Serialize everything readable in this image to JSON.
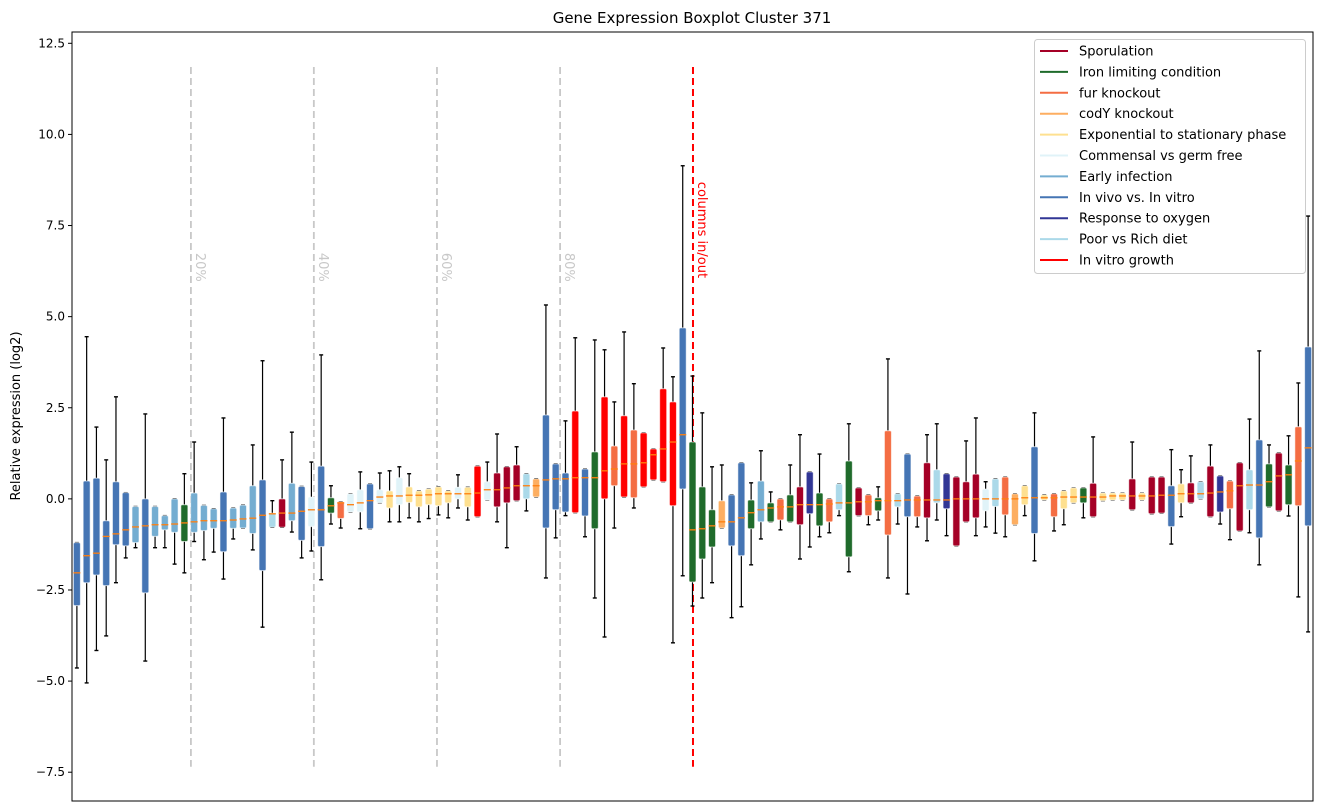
{
  "chart_data": {
    "type": "boxplot",
    "title": "Gene Expression Boxplot Cluster 371",
    "xlabel": "",
    "ylabel": "Relative expression (log2)",
    "ylim": [
      -8.29,
      12.81
    ],
    "xlim": [
      0.5,
      127.5
    ],
    "yticks": [
      -7.5,
      -5.0,
      -2.5,
      0.0,
      2.5,
      5.0,
      7.5,
      10.0,
      12.5
    ],
    "ytick_labels": [
      "−7.5",
      "−5.0",
      "−2.5",
      "0.0",
      "2.5",
      "5.0",
      "7.5",
      "10.0",
      "12.5"
    ],
    "grid": false,
    "legend_position": "top-right",
    "median_color": "#ff7f0e",
    "groups": {
      "S": {
        "name": "Sporulation",
        "color": "#a50026"
      },
      "I": {
        "name": "Iron limiting condition",
        "color": "#1f6b2b"
      },
      "F": {
        "name": "fur knockout",
        "color": "#f46d43"
      },
      "C": {
        "name": "codY knockout",
        "color": "#fdae61"
      },
      "E": {
        "name": "Exponential to stationary phase",
        "color": "#fee090"
      },
      "G": {
        "name": "Commensal vs germ free",
        "color": "#e0f3f8"
      },
      "EI": {
        "name": "Early infection",
        "color": "#74add1"
      },
      "V": {
        "name": "In vivo vs. In vitro",
        "color": "#4575b4"
      },
      "O": {
        "name": "Response to oxygen",
        "color": "#313695"
      },
      "P": {
        "name": "Poor vs Rich diet",
        "color": "#abd9e9"
      },
      "R": {
        "name": "In vitro growth",
        "color": "#ff0000"
      }
    },
    "legend_order": [
      "S",
      "I",
      "F",
      "C",
      "E",
      "G",
      "EI",
      "V",
      "O",
      "P",
      "R"
    ],
    "box_fields": [
      "group",
      "whisker_low",
      "q1",
      "median",
      "q3",
      "whisker_high"
    ],
    "boxes": [
      [
        "V",
        -4.64,
        -2.93,
        -2.03,
        -1.2,
        -1.2
      ],
      [
        "V",
        -5.05,
        -2.3,
        -1.56,
        0.49,
        4.45
      ],
      [
        "V",
        -4.16,
        -2.09,
        -1.49,
        0.57,
        1.97
      ],
      [
        "V",
        -3.76,
        -2.38,
        -1.03,
        -0.6,
        1.07
      ],
      [
        "V",
        -2.3,
        -1.26,
        -0.96,
        0.47,
        2.8
      ],
      [
        "V",
        -1.62,
        -1.29,
        -0.85,
        0.17,
        0.17
      ],
      [
        "EI",
        -1.34,
        -1.2,
        -0.77,
        -0.21,
        -0.21
      ],
      [
        "V",
        -4.45,
        -2.58,
        -0.74,
        0.0,
        2.33
      ],
      [
        "EI",
        -1.34,
        -1.03,
        -0.71,
        -0.21,
        -0.21
      ],
      [
        "EI",
        -1.34,
        -0.85,
        -0.71,
        -0.46,
        -0.46
      ],
      [
        "EI",
        -1.79,
        -0.92,
        -0.69,
        0,
        0
      ],
      [
        "I",
        -2.03,
        -1.17,
        -0.66,
        -0.16,
        0.69
      ],
      [
        "EI",
        -1.17,
        -0.92,
        -0.63,
        0.16,
        1.56
      ],
      [
        "EI",
        -1.67,
        -0.87,
        -0.6,
        -0.18,
        -0.18
      ],
      [
        "EI",
        -1.46,
        -0.81,
        -0.6,
        -0.27,
        -0.27
      ],
      [
        "V",
        -2.2,
        -1.45,
        -0.6,
        0.19,
        2.22
      ],
      [
        "EI",
        -1.1,
        -0.81,
        -0.58,
        -0.25,
        -0.25
      ],
      [
        "EI",
        -0.8,
        -0.8,
        -0.55,
        -0.17,
        -0.17
      ],
      [
        "EI",
        -1.4,
        -0.95,
        -0.53,
        0.36,
        1.48
      ],
      [
        "V",
        -3.52,
        -1.97,
        -0.45,
        0.52,
        3.79
      ],
      [
        "P",
        -0.78,
        -0.78,
        -0.41,
        -0.39,
        -0.05
      ],
      [
        "S",
        -0.78,
        -0.78,
        -0.39,
        0,
        1.07
      ],
      [
        "EI",
        -0.91,
        -0.6,
        -0.39,
        0.43,
        1.83
      ],
      [
        "V",
        -1.62,
        -1.14,
        -0.34,
        0.34,
        0.34
      ],
      [
        "G",
        -1.43,
        -0.76,
        -0.3,
        0.05,
        1.01
      ],
      [
        "V",
        -2.22,
        -1.31,
        -0.3,
        0.9,
        3.95
      ],
      [
        "I",
        -0.69,
        -0.39,
        -0.19,
        0.03,
        0.36
      ],
      [
        "F",
        -0.8,
        -0.54,
        -0.11,
        -0.08,
        -0.08
      ],
      [
        "G",
        -0.36,
        -0.36,
        -0.16,
        0.14,
        0.14
      ],
      [
        "G",
        -0.82,
        -0.36,
        -0.11,
        0.25,
        0.74
      ],
      [
        "V",
        -0.82,
        -0.82,
        -0.05,
        0.41,
        0.41
      ],
      [
        "G",
        -0.11,
        -0.11,
        0.05,
        0.25,
        0.71
      ],
      [
        "E",
        -0.63,
        -0.25,
        0.08,
        0.22,
        0.77
      ],
      [
        "G",
        -0.63,
        -0.16,
        0.08,
        0.58,
        0.88
      ],
      [
        "E",
        -0.52,
        -0.1,
        0.1,
        0.33,
        0.69
      ],
      [
        "E",
        -0.63,
        -0.22,
        0.1,
        0.22,
        0.22
      ],
      [
        "E",
        -0.54,
        -0.16,
        0.11,
        0.27,
        0.27
      ],
      [
        "E",
        -0.44,
        -0.19,
        0.14,
        0.33,
        0.33
      ],
      [
        "E",
        -0.52,
        -0.11,
        0.14,
        0.22,
        0.22
      ],
      [
        "G",
        -0.25,
        0,
        0.14,
        0.32,
        0.66
      ],
      [
        "E",
        -0.58,
        -0.22,
        0.14,
        0.32,
        0.32
      ],
      [
        "R",
        -0.49,
        -0.49,
        0.16,
        0.9,
        0.9
      ],
      [
        "G",
        -0.03,
        -0.03,
        0.25,
        0.47,
        1.01
      ],
      [
        "S",
        -0.63,
        -0.22,
        0.25,
        0.71,
        1.78
      ],
      [
        "S",
        -1.34,
        -0.11,
        0.3,
        0.88,
        0.88
      ],
      [
        "S",
        -0.05,
        -0.05,
        0.36,
        0.93,
        1.43
      ],
      [
        "P",
        -0.33,
        0,
        0.36,
        0.69,
        0.69
      ],
      [
        "C",
        0.05,
        0.05,
        0.36,
        0.55,
        0.55
      ],
      [
        "V",
        -2.17,
        -0.8,
        0.52,
        2.3,
        5.32
      ],
      [
        "V",
        -1.07,
        -0.3,
        0.55,
        0.96,
        0.96
      ],
      [
        "V",
        -0.46,
        -0.36,
        0.55,
        0.71,
        2.14
      ],
      [
        "R",
        -0.38,
        -0.38,
        0.58,
        2.41,
        4.42
      ],
      [
        "V",
        -1.04,
        -0.47,
        0.58,
        0.82,
        0.82
      ],
      [
        "I",
        -2.72,
        -0.82,
        0.58,
        1.29,
        4.36
      ],
      [
        "R",
        -3.79,
        0,
        0.77,
        2.8,
        4.09
      ],
      [
        "F",
        -0.8,
        0.36,
        0.82,
        1.45,
        2.66
      ],
      [
        "R",
        0.05,
        0.05,
        0.96,
        2.28,
        4.58
      ],
      [
        "F",
        -0.25,
        0.03,
        0.96,
        1.89,
        3.16
      ],
      [
        "R",
        0.33,
        0.33,
        0.99,
        1.81,
        1.81
      ],
      [
        "R",
        0.52,
        0.52,
        1.21,
        1.37,
        1.37
      ],
      [
        "R",
        0.47,
        0.47,
        1.37,
        3.02,
        4.14
      ],
      [
        "R",
        -3.95,
        -0.19,
        1.56,
        2.66,
        3.35
      ],
      [
        "V",
        -2.11,
        0.27,
        1.76,
        4.69,
        9.14
      ],
      [
        "I",
        -2.94,
        -2.28,
        -0.85,
        1.56,
        3.37
      ],
      [
        "I",
        -2.72,
        -1.65,
        -0.82,
        0.33,
        2.36
      ],
      [
        "I",
        -2.3,
        -1.32,
        -0.74,
        -0.3,
        0.88
      ],
      [
        "C",
        -0.8,
        -0.8,
        -0.63,
        -0.05,
        0.93
      ],
      [
        "V",
        -3.26,
        -1.29,
        -0.63,
        0.11,
        0.11
      ],
      [
        "V",
        -2.96,
        -1.56,
        -0.52,
        0.99,
        0.99
      ],
      [
        "I",
        -1.81,
        -0.82,
        -0.38,
        -0.03,
        0.44
      ],
      [
        "EI",
        -1.1,
        -0.63,
        -0.3,
        0.49,
        1.32
      ],
      [
        "I",
        -0.63,
        -0.63,
        -0.25,
        -0.11,
        0.19
      ],
      [
        "F",
        -0.85,
        -0.58,
        -0.22,
        0,
        0
      ],
      [
        "I",
        -0.63,
        -0.63,
        -0.22,
        0.11,
        0.93
      ],
      [
        "S",
        -1.65,
        -0.71,
        -0.16,
        0.33,
        1.76
      ],
      [
        "O",
        -1.32,
        -0.41,
        -0.16,
        0.74,
        0.74
      ],
      [
        "I",
        -1.04,
        -0.74,
        -0.16,
        0.16,
        1.23
      ],
      [
        "F",
        -0.93,
        -0.63,
        -0.14,
        0,
        0
      ],
      [
        "P",
        -0.46,
        -0.3,
        -0.11,
        0.41,
        0.41
      ],
      [
        "I",
        -2.0,
        -1.59,
        -0.11,
        1.04,
        2.06
      ],
      [
        "S",
        -0.46,
        -0.46,
        -0.08,
        0.3,
        0.3
      ],
      [
        "F",
        -0.71,
        -0.46,
        -0.08,
        0.11,
        0.11
      ],
      [
        "I",
        -0.58,
        -0.33,
        -0.05,
        0.03,
        0.33
      ],
      [
        "F",
        -2.17,
        -0.99,
        -0.05,
        1.87,
        3.84
      ],
      [
        "P",
        -0.69,
        -0.22,
        -0.05,
        0.14,
        0.14
      ],
      [
        "V",
        -2.61,
        -0.49,
        -0.03,
        1.23,
        1.23
      ],
      [
        "F",
        -0.77,
        -0.49,
        -0.03,
        0.08,
        0.08
      ],
      [
        "S",
        -1.15,
        -0.52,
        -0.03,
        0.99,
        1.76
      ],
      [
        "P",
        -0.58,
        -0.11,
        -0.03,
        0.8,
        2.06
      ],
      [
        "O",
        -1.01,
        -0.27,
        -0.03,
        0.69,
        0.69
      ],
      [
        "S",
        -1.29,
        -1.29,
        0,
        0.6,
        0.6
      ],
      [
        "S",
        -0.63,
        -0.63,
        0,
        0.47,
        1.59
      ],
      [
        "S",
        -1.01,
        -0.52,
        0,
        0.68,
        2.22
      ],
      [
        "G",
        -0.77,
        -0.33,
        0,
        0.27,
        0.47
      ],
      [
        "P",
        -0.94,
        -0.21,
        0,
        0.55,
        0.55
      ],
      [
        "F",
        -1.04,
        -0.44,
        0,
        0.6,
        0.6
      ],
      [
        "C",
        -0.71,
        -0.71,
        0,
        0.14,
        0.14
      ],
      [
        "E",
        -0.46,
        -0.16,
        0.03,
        0.36,
        0.36
      ],
      [
        "V",
        -1.7,
        -0.95,
        0.03,
        1.43,
        2.36
      ],
      [
        "E",
        -0.03,
        -0.03,
        0.03,
        0.11,
        0.11
      ],
      [
        "F",
        -0.88,
        -0.49,
        0.03,
        0.14,
        0.14
      ],
      [
        "E",
        -0.71,
        -0.27,
        0.05,
        0.22,
        0.22
      ],
      [
        "E",
        -0.11,
        -0.11,
        0.05,
        0.3,
        0.3
      ],
      [
        "I",
        -0.52,
        -0.11,
        0.05,
        0.3,
        0.3
      ],
      [
        "S",
        -0.49,
        -0.49,
        0.05,
        0.43,
        1.7
      ],
      [
        "E",
        -0.05,
        -0.05,
        0.05,
        0.16,
        0.16
      ],
      [
        "E",
        -0.03,
        -0.03,
        0.08,
        0.16,
        0.16
      ],
      [
        "E",
        -0.03,
        -0.03,
        0.08,
        0.16,
        0.16
      ],
      [
        "S",
        -0.3,
        -0.3,
        0.08,
        0.55,
        1.56
      ],
      [
        "E",
        -0.03,
        -0.03,
        0.08,
        0.16,
        0.16
      ],
      [
        "S",
        -0.41,
        -0.41,
        0.08,
        0.6,
        0.6
      ],
      [
        "S",
        -0.39,
        -0.39,
        0.1,
        0.6,
        0.6
      ],
      [
        "V",
        -1.24,
        -0.76,
        0.1,
        0.36,
        1.35
      ],
      [
        "E",
        -0.49,
        -0.11,
        0.14,
        0.41,
        0.8
      ],
      [
        "S",
        -0.11,
        -0.11,
        0.14,
        0.44,
        1.18
      ],
      [
        "P",
        0,
        0,
        0.14,
        0.47,
        0.47
      ],
      [
        "S",
        -0.49,
        -0.49,
        0.16,
        0.9,
        1.48
      ],
      [
        "O",
        -0.69,
        -0.36,
        0.19,
        0.63,
        0.63
      ],
      [
        "F",
        -1.12,
        -0.27,
        0.22,
        0.49,
        0.49
      ],
      [
        "S",
        -0.88,
        -0.88,
        0.36,
        0.99,
        0.99
      ],
      [
        "P",
        -0.93,
        -0.3,
        0.38,
        0.8,
        2.19
      ],
      [
        "V",
        -1.81,
        -1.07,
        0.38,
        1.62,
        4.06
      ],
      [
        "I",
        -0.22,
        -0.22,
        0.47,
        0.96,
        1.48
      ],
      [
        "S",
        -0.33,
        -0.33,
        0.63,
        1.26,
        1.26
      ],
      [
        "I",
        -0.47,
        -0.16,
        0.66,
        0.93,
        1.73
      ],
      [
        "F",
        -2.69,
        -0.19,
        1.04,
        1.98,
        3.18
      ],
      [
        "V",
        -3.65,
        -0.74,
        1.4,
        4.17,
        7.76
      ]
    ],
    "annotations": [
      {
        "label": "20%",
        "x": 12.67,
        "color": "#c8c8c8"
      },
      {
        "label": "40%",
        "x": 25.25,
        "color": "#c8c8c8"
      },
      {
        "label": "60%",
        "x": 37.85,
        "color": "#c8c8c8"
      },
      {
        "label": "80%",
        "x": 50.45,
        "color": "#c8c8c8"
      },
      {
        "label": "columns in/out",
        "x": 64.05,
        "color": "#ff0000"
      }
    ],
    "annotation_yrange": [
      -7.35,
      11.85
    ]
  }
}
